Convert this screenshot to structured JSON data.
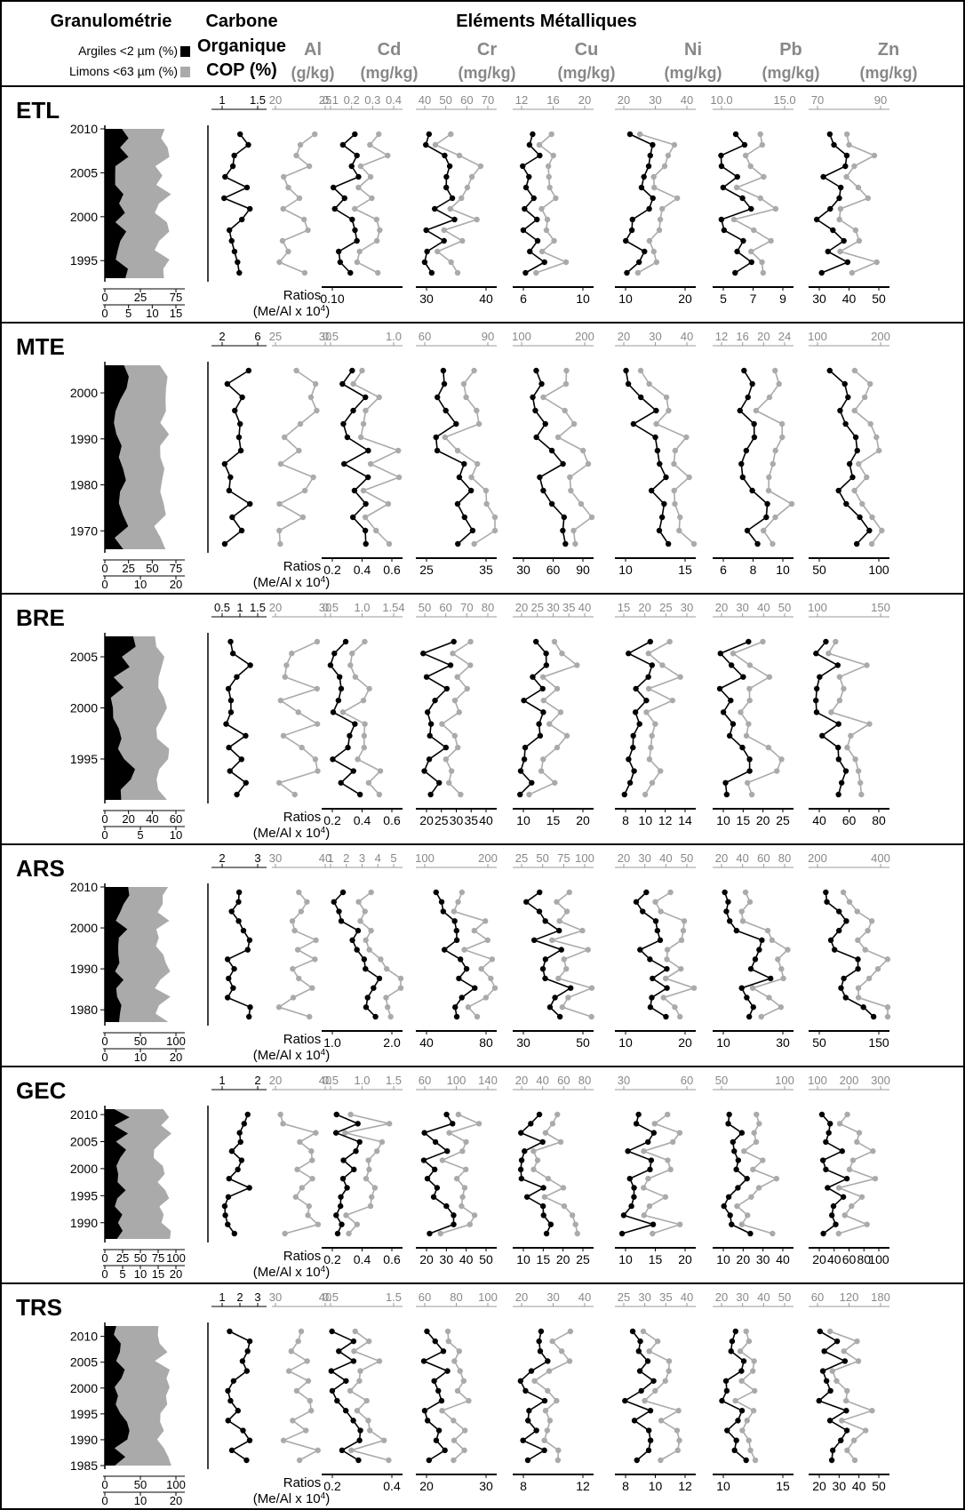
{
  "header": {
    "granulometrie": "Granulométrie",
    "carbone_line1": "Carbone",
    "carbone_line2": "Organique",
    "carbone_line3": "COP (%)",
    "elements_title": "Eléments Métalliques",
    "legend_argiles": "Argiles <2 µm (%)",
    "legend_limons": "Limons <63 µm (%)",
    "elements": [
      {
        "name": "Al",
        "unit": "(g/kg)"
      },
      {
        "name": "Cd",
        "unit": "(mg/kg)"
      },
      {
        "name": "Cr",
        "unit": "(mg/kg)"
      },
      {
        "name": "Cu",
        "unit": "(mg/kg)"
      },
      {
        "name": "Ni",
        "unit": "(mg/kg)"
      },
      {
        "name": "Pb",
        "unit": "(mg/kg)"
      },
      {
        "name": "Zn",
        "unit": "(mg/kg)"
      }
    ]
  },
  "ratios_line1": "Ratios",
  "ratios_line2": "(Me/Al x 10",
  "ratios_sup": "4",
  "ratios_close": ")",
  "colors": {
    "argiles": "#000000",
    "limons": "#aaaaaa",
    "concentration": "#aaaaaa",
    "ratio": "#000000"
  },
  "chart_data": [
    {
      "type": "line",
      "site": "ETL",
      "years": [
        1993,
        2010
      ],
      "year_ticks": [
        "1995",
        "2000",
        "2005",
        "2010"
      ],
      "granulo_bottom_ticks_1": [
        "0",
        "25",
        "75"
      ],
      "granulo_bottom_ticks_2": [
        "0",
        "5",
        "10",
        "15"
      ],
      "cop_top_ticks": [
        "1",
        "1.5"
      ],
      "conc_top_ticks": [
        [
          "20",
          "25"
        ],
        [
          "0.1",
          "0.2",
          "0.3",
          "0.4"
        ],
        [
          "40",
          "50",
          "60",
          "70"
        ],
        [
          "12",
          "16",
          "20"
        ],
        [
          "20",
          "30",
          "40"
        ],
        [
          "10.0",
          "15.0"
        ],
        [
          "70",
          "90"
        ]
      ],
      "ratio_bottom_ticks": [
        [
          "0.10"
        ],
        [
          "30",
          "40"
        ],
        [
          "6",
          "10"
        ],
        [
          "10",
          "20"
        ],
        [
          "5",
          "7",
          "9"
        ],
        [
          "30",
          "40",
          "50"
        ]
      ]
    },
    {
      "type": "line",
      "site": "MTE",
      "years": [
        1966,
        2006
      ],
      "year_ticks": [
        "1970",
        "1980",
        "1990",
        "2000"
      ],
      "granulo_bottom_ticks_1": [
        "0",
        "25",
        "50",
        "75"
      ],
      "granulo_bottom_ticks_2": [
        "0",
        "10",
        "20"
      ],
      "cop_top_ticks": [
        "2",
        "6"
      ],
      "conc_top_ticks": [
        [
          "25",
          "30"
        ],
        [
          "0.5",
          "1.0"
        ],
        [
          "60",
          "90"
        ],
        [
          "100",
          "200"
        ],
        [
          "20",
          "30",
          "40"
        ],
        [
          "12",
          "16",
          "20",
          "24"
        ],
        [
          "100",
          "200"
        ]
      ],
      "ratio_bottom_ticks": [
        [
          "0.2",
          "0.4",
          "0.6"
        ],
        [
          "25",
          "35"
        ],
        [
          "30",
          "60",
          "90"
        ],
        [
          "10",
          "15"
        ],
        [
          "6",
          "8",
          "10"
        ],
        [
          "50",
          "100"
        ]
      ]
    },
    {
      "type": "line",
      "site": "BRE",
      "years": [
        1991,
        2007
      ],
      "year_ticks": [
        "1995",
        "2000",
        "2005"
      ],
      "granulo_bottom_ticks_1": [
        "0",
        "20",
        "40",
        "60"
      ],
      "granulo_bottom_ticks_2": [
        "0",
        "5",
        "10"
      ],
      "cop_top_ticks": [
        "0.5",
        "1",
        "1.5"
      ],
      "conc_top_ticks": [
        [
          "20",
          "30"
        ],
        [
          "0.5",
          "1.0",
          "1.54"
        ],
        [
          "50",
          "60",
          "70",
          "80"
        ],
        [
          "20",
          "25",
          "30",
          "35",
          "40"
        ],
        [
          "15",
          "20",
          "25",
          "30"
        ],
        [
          "20",
          "30",
          "40",
          "50"
        ],
        [
          "100",
          "150"
        ]
      ],
      "ratio_bottom_ticks": [
        [
          "0.2",
          "0.4",
          "0.6"
        ],
        [
          "20",
          "25",
          "30",
          "35",
          "40"
        ],
        [
          "10",
          "15",
          "20"
        ],
        [
          "8",
          "10",
          "12",
          "14"
        ],
        [
          "10",
          "15",
          "20",
          "25"
        ],
        [
          "40",
          "60",
          "80"
        ]
      ]
    },
    {
      "type": "line",
      "site": "ARS",
      "years": [
        1977,
        2010
      ],
      "year_ticks": [
        "1980",
        "1990",
        "2000",
        "2010"
      ],
      "granulo_bottom_ticks_1": [
        "0",
        "50",
        "100"
      ],
      "granulo_bottom_ticks_2": [
        "0",
        "10",
        "20"
      ],
      "cop_top_ticks": [
        "2",
        "3"
      ],
      "conc_top_ticks": [
        [
          "30",
          "40"
        ],
        [
          "1",
          "2",
          "3",
          "4",
          "5"
        ],
        [
          "100",
          "200"
        ],
        [
          "25",
          "50",
          "75",
          "100"
        ],
        [
          "20",
          "30",
          "40",
          "50"
        ],
        [
          "20",
          "40",
          "60",
          "80"
        ],
        [
          "200",
          "400"
        ]
      ],
      "ratio_bottom_ticks": [
        [
          "1.0",
          "2.0"
        ],
        [
          "40",
          "80"
        ],
        [
          "30",
          "50"
        ],
        [
          "10",
          "20"
        ],
        [
          "10",
          "30"
        ],
        [
          "50",
          "150"
        ]
      ]
    },
    {
      "type": "line",
      "site": "GEC",
      "years": [
        1987,
        2011
      ],
      "year_ticks": [
        "1990",
        "1995",
        "2000",
        "2005",
        "2010"
      ],
      "granulo_bottom_ticks_1": [
        "0",
        "25",
        "50",
        "75",
        "100"
      ],
      "granulo_bottom_ticks_2": [
        "0",
        "5",
        "10",
        "15",
        "20"
      ],
      "cop_top_ticks": [
        "1",
        "2"
      ],
      "conc_top_ticks": [
        [
          "20",
          "40"
        ],
        [
          "0.5",
          "1.0",
          "1.5"
        ],
        [
          "60",
          "100",
          "140"
        ],
        [
          "20",
          "40",
          "60",
          "80"
        ],
        [
          "30",
          "60"
        ],
        [
          "50",
          "100"
        ],
        [
          "100",
          "200",
          "300"
        ]
      ],
      "ratio_bottom_ticks": [
        [
          "0.2",
          "0.4",
          "0.6"
        ],
        [
          "20",
          "30",
          "40",
          "50"
        ],
        [
          "10",
          "15",
          "20",
          "25"
        ],
        [
          "10",
          "15",
          "20"
        ],
        [
          "10",
          "20",
          "30",
          "40"
        ],
        [
          "20",
          "40",
          "60",
          "80",
          "100"
        ]
      ]
    },
    {
      "type": "line",
      "site": "TRS",
      "years": [
        1985,
        2012
      ],
      "year_ticks": [
        "1985",
        "1990",
        "1995",
        "2000",
        "2005",
        "2010"
      ],
      "granulo_bottom_ticks_1": [
        "0",
        "50",
        "100"
      ],
      "granulo_bottom_ticks_2": [
        "0",
        "10",
        "20"
      ],
      "cop_top_ticks": [
        "1",
        "2",
        "3"
      ],
      "conc_top_ticks": [
        [
          "30",
          "40"
        ],
        [
          "0.5",
          "1.5"
        ],
        [
          "60",
          "80",
          "100"
        ],
        [
          "20",
          "30",
          "40"
        ],
        [
          "25",
          "30",
          "35",
          "40"
        ],
        [
          "20",
          "30",
          "40",
          "50"
        ],
        [
          "60",
          "120",
          "180"
        ]
      ],
      "ratio_bottom_ticks": [
        [
          "0.2",
          "0.4"
        ],
        [
          "20",
          "30"
        ],
        [
          "8",
          "12"
        ],
        [
          "8",
          "10",
          "12"
        ],
        [
          "10",
          "15"
        ],
        [
          "20",
          "30",
          "40",
          "50"
        ]
      ]
    }
  ]
}
